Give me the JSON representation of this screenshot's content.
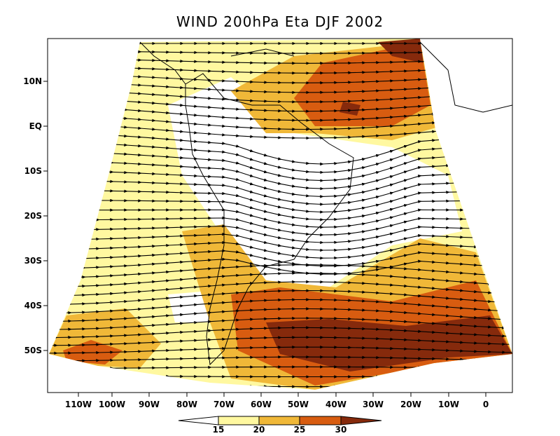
{
  "title": "WIND 200hPa Eta DJF 2002",
  "lat_labels": [
    "10N",
    "EQ",
    "10S",
    "20S",
    "30S",
    "40S",
    "50S"
  ],
  "lon_labels": [
    "110W",
    "100W",
    "90W",
    "80W",
    "70W",
    "60W",
    "50W",
    "40W",
    "30W",
    "20W",
    "10W",
    "0"
  ],
  "colorbar": {
    "levels": [
      15,
      20,
      25,
      30
    ],
    "colors": [
      "#ffffff",
      "#fff8a0",
      "#f0b838",
      "#d85c10",
      "#862a0c"
    ]
  }
}
